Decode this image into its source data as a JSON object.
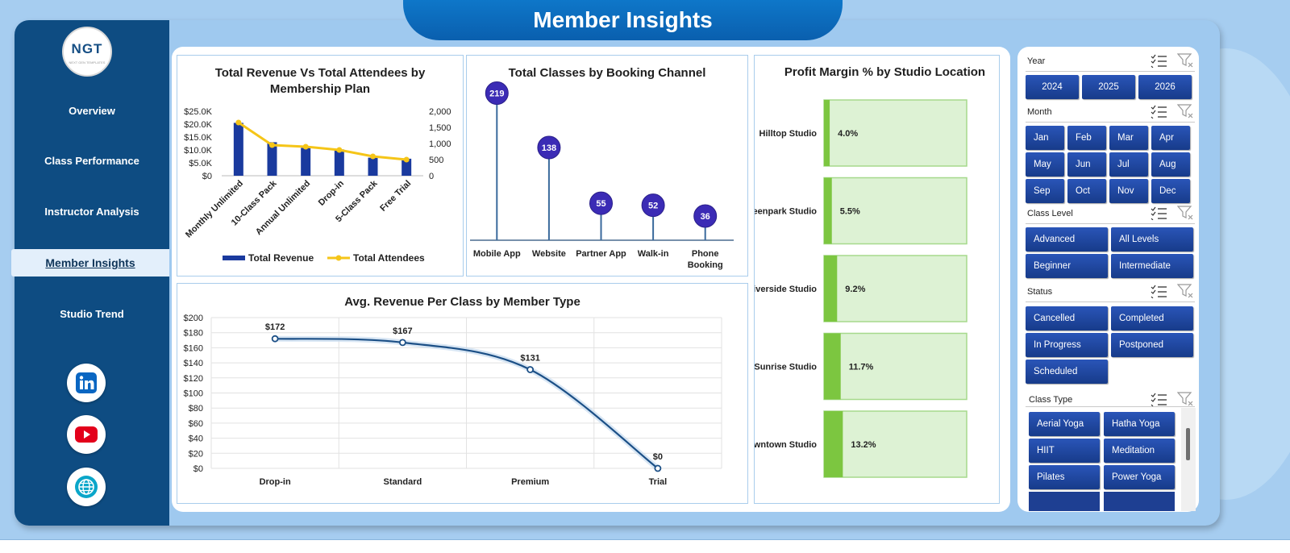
{
  "page": {
    "title": "Member Insights"
  },
  "logo": {
    "text": "NGT",
    "subtext": "NEXT GEN TEMPLATES"
  },
  "sidebar": {
    "items": [
      {
        "label": "Overview"
      },
      {
        "label": "Class Performance"
      },
      {
        "label": "Instructor Analysis"
      },
      {
        "label": "Member Insights",
        "active": true
      },
      {
        "label": "Studio Trend"
      }
    ],
    "socials": [
      "linkedin-icon",
      "youtube-icon",
      "globe-icon"
    ]
  },
  "colors": {
    "navy": "#0e4c82",
    "accent_bar": "#1a3a9e",
    "line": "#f5c518",
    "lollipop": "#3b2bb5",
    "green": "#7cc640",
    "slicer_btn": "#1e49a5"
  },
  "chart_data": [
    {
      "type": "bar",
      "title": "Total Revenue Vs Total Attendees by Membership Plan",
      "categories": [
        "Monthly Unlimited",
        "10-Class Pack",
        "Annual Unlimited",
        "Drop-in",
        "5-Class Pack",
        "Free Trial"
      ],
      "series": [
        {
          "name": "Total Revenue",
          "type": "bar",
          "axis": "left",
          "values": [
            20500,
            13000,
            10800,
            10200,
            7000,
            6600
          ]
        },
        {
          "name": "Total Attendees",
          "type": "line",
          "axis": "right",
          "values": [
            1650,
            950,
            900,
            800,
            600,
            500
          ]
        }
      ],
      "yleft_ticks": [
        "$25.0K",
        "$20.0K",
        "$15.0K",
        "$10.0K",
        "$5.0K",
        "$0"
      ],
      "yright_ticks": [
        "2,000",
        "1,500",
        "1,000",
        "500",
        "0"
      ],
      "ylim_left": [
        0,
        25000
      ],
      "ylim_right": [
        0,
        2000
      ],
      "legend": "bottom"
    },
    {
      "type": "lollipop",
      "title": "Total Classes by Booking Channel",
      "categories": [
        "Mobile App",
        "Website",
        "Partner App",
        "Walk-in",
        "Phone Booking"
      ],
      "values": [
        219,
        138,
        55,
        52,
        36
      ],
      "ylim": [
        0,
        240
      ]
    },
    {
      "type": "bar",
      "orientation": "horizontal",
      "title": "Profit Margin % by Studio Location",
      "categories": [
        "Hilltop Studio",
        "Greenpark Studio",
        "Riverside Studio",
        "Sunrise Studio",
        "Downtown Studio"
      ],
      "values": [
        4.0,
        5.5,
        9.2,
        11.7,
        13.2
      ],
      "labels": [
        "4.0%",
        "5.5%",
        "9.2%",
        "11.7%",
        "13.2%"
      ],
      "xlim": [
        0,
        100
      ]
    },
    {
      "type": "line",
      "title": "Avg. Revenue Per Class by Member Type",
      "categories": [
        "Drop-in",
        "Standard",
        "Premium",
        "Trial"
      ],
      "values": [
        172,
        167,
        131,
        0
      ],
      "labels": [
        "$172",
        "$167",
        "$131",
        "$0"
      ],
      "yticks": [
        "$200",
        "$180",
        "$160",
        "$140",
        "$120",
        "$100",
        "$80",
        "$60",
        "$40",
        "$20",
        "$0"
      ],
      "ylim": [
        0,
        200
      ],
      "grid": true
    }
  ],
  "slicers": {
    "year": {
      "title": "Year",
      "options": [
        "2024",
        "2025",
        "2026"
      ]
    },
    "month": {
      "title": "Month",
      "options": [
        "Jan",
        "Feb",
        "Mar",
        "Apr",
        "May",
        "Jun",
        "Jul",
        "Aug",
        "Sep",
        "Oct",
        "Nov",
        "Dec"
      ]
    },
    "class_level": {
      "title": "Class Level",
      "options": [
        "Advanced",
        "All Levels",
        "Beginner",
        "Intermediate"
      ]
    },
    "status": {
      "title": "Status",
      "options": [
        "Cancelled",
        "Completed",
        "In Progress",
        "Postponed",
        "Scheduled"
      ]
    },
    "class_type": {
      "title": "Class Type",
      "options": [
        "Aerial Yoga",
        "Hatha Yoga",
        "HIIT",
        "Meditation",
        "Pilates",
        "Power Yoga"
      ]
    }
  }
}
